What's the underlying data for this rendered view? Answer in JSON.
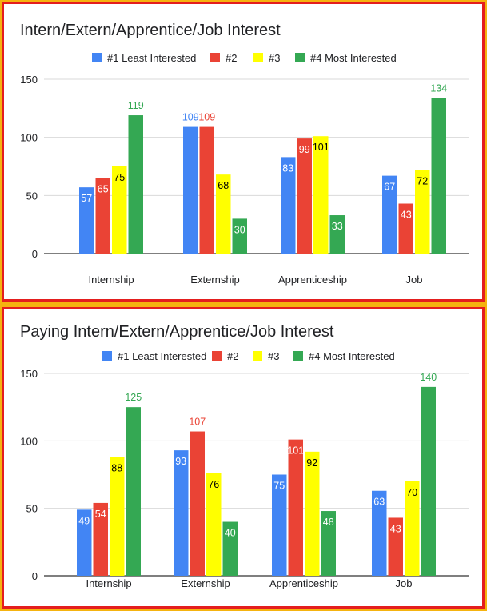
{
  "colors": {
    "series1": "#4285f4",
    "series2": "#ea4335",
    "series3": "#ffff00",
    "series4": "#34a853",
    "grid": "#d9d9d9",
    "axis": "#333333",
    "text": "#202124",
    "label_dark": "#000000",
    "label_light": "#ffffff",
    "border": "#e41e1e",
    "page_bg": "#f5b30f"
  },
  "chart_data": [
    {
      "type": "bar",
      "title": "Intern/Extern/Apprentice/Job Interest",
      "categories": [
        "Internship",
        "Externship",
        "Apprenticeship",
        "Job"
      ],
      "series": [
        {
          "name": "#1 Least Interested",
          "values": [
            57,
            109,
            83,
            67
          ]
        },
        {
          "name": "#2",
          "values": [
            65,
            109,
            99,
            43
          ]
        },
        {
          "name": "#3",
          "values": [
            75,
            68,
            101,
            72
          ]
        },
        {
          "name": "#4 Most Interested",
          "values": [
            119,
            30,
            33,
            134
          ]
        }
      ],
      "yticks": [
        0,
        50,
        100,
        150
      ],
      "ylim": [
        0,
        150
      ],
      "legend_position": "top",
      "grid": true
    },
    {
      "type": "bar",
      "title": "Paying Intern/Extern/Apprentice/Job Interest",
      "categories": [
        "Internship",
        "Externship",
        "Apprenticeship",
        "Job"
      ],
      "series": [
        {
          "name": "#1 Least Interested",
          "values": [
            49,
            93,
            75,
            63
          ]
        },
        {
          "name": "#2",
          "values": [
            54,
            107,
            101,
            43
          ]
        },
        {
          "name": "#3",
          "values": [
            88,
            76,
            92,
            70
          ]
        },
        {
          "name": "#4 Most Interested",
          "values": [
            125,
            40,
            48,
            140
          ]
        }
      ],
      "yticks": [
        0,
        50,
        100,
        150
      ],
      "ylim": [
        0,
        150
      ],
      "legend_position": "top",
      "grid": true
    }
  ]
}
